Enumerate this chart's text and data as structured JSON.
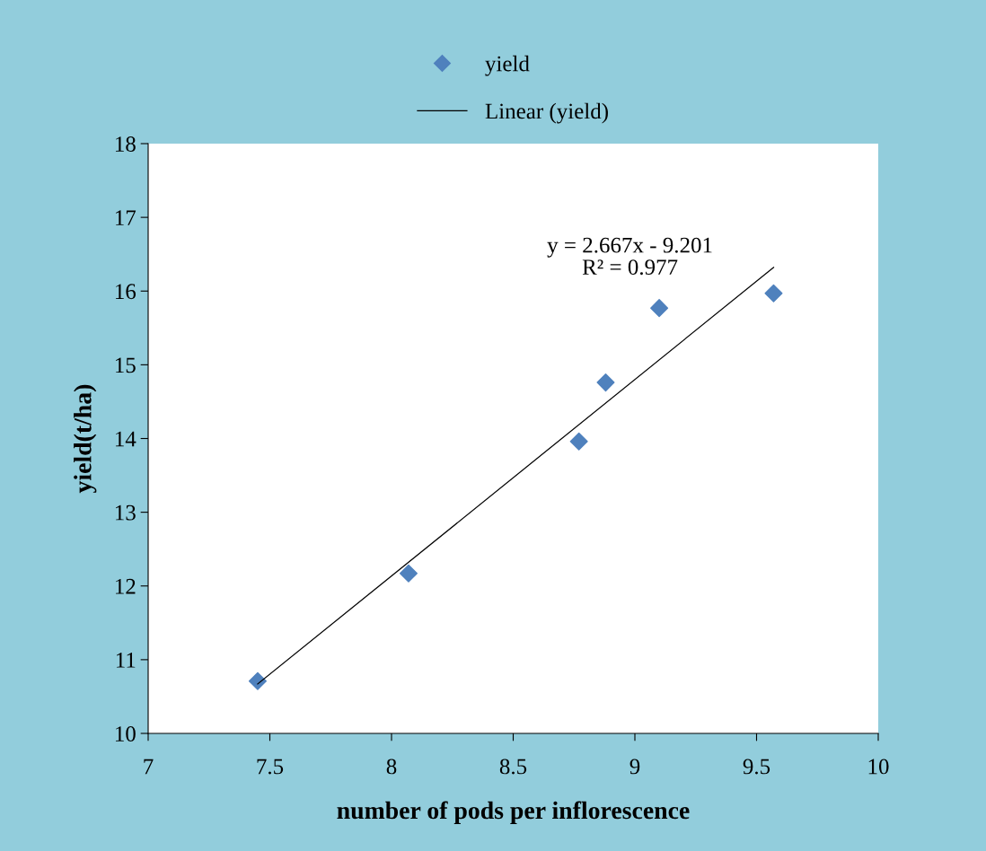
{
  "chart_data": {
    "type": "scatter",
    "xlabel": "number of pods per inflorescence",
    "ylabel": "yield(t/ha)",
    "series": [
      {
        "name": "yield",
        "color": "#4f81bd",
        "marker": "diamond",
        "x": [
          7.45,
          8.07,
          8.77,
          8.88,
          9.1,
          9.57
        ],
        "values": [
          10.71,
          12.17,
          13.96,
          14.76,
          15.77,
          15.97
        ]
      },
      {
        "name": "Linear (yield)",
        "type": "line",
        "color": "#000000",
        "marker": "none",
        "x": [
          7.45,
          9.57
        ],
        "values": [
          10.67,
          16.32
        ]
      }
    ],
    "annotations": [
      "y = 2.667x - 9.201\nR² = 0.977"
    ],
    "xlim": [
      7,
      10
    ],
    "xticks": [
      7,
      7.5,
      8,
      8.5,
      9,
      9.5,
      10
    ],
    "ylim": [
      10,
      18
    ],
    "yticks": [
      10,
      11,
      12,
      13,
      14,
      15,
      16,
      17,
      18
    ],
    "grid": false,
    "legend": "top"
  }
}
